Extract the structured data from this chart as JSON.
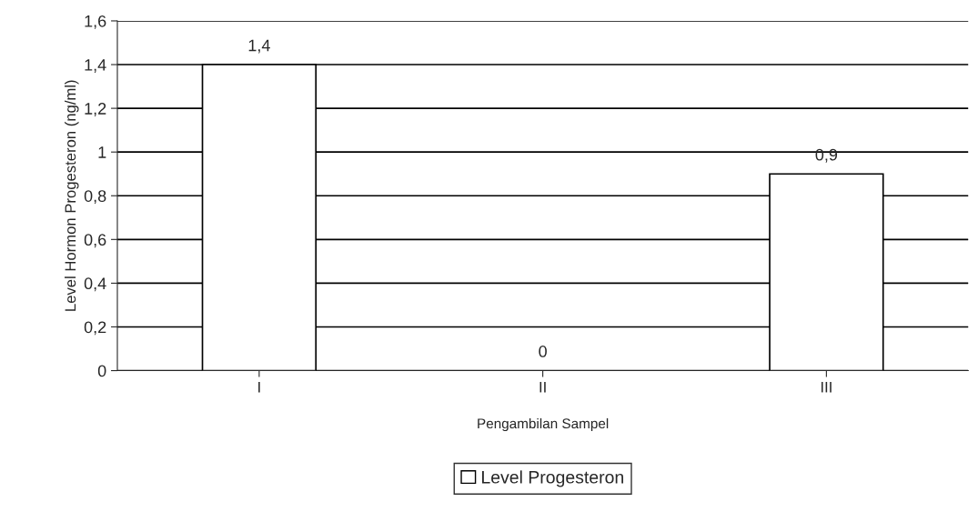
{
  "chart_data": {
    "type": "bar",
    "xlabel": "Pengambilan Sampel",
    "ylabel": "Level Hormon Progesteron (ng/ml)",
    "categories": [
      "I",
      "II",
      "III"
    ],
    "series": [
      {
        "name": "Level Progesteron",
        "color": "#ffffff",
        "values": [
          1.4,
          0,
          0.9
        ],
        "value_labels": [
          "1,4",
          "0",
          "0,9"
        ]
      }
    ],
    "ylim": [
      0,
      1.6
    ],
    "yticks": [
      0,
      {
        "value": 0.2,
        "label": "0,2"
      },
      {
        "value": 0.4,
        "label": "0,4"
      },
      {
        "value": 0.6,
        "label": "0,6"
      },
      {
        "value": 0.8,
        "label": "0,8"
      },
      1,
      {
        "value": 1.2,
        "label": "1,2"
      },
      {
        "value": 1.4,
        "label": "1,4"
      },
      {
        "value": 1.6,
        "label": "1,6"
      }
    ],
    "grid": "y",
    "legend": "bottom"
  }
}
